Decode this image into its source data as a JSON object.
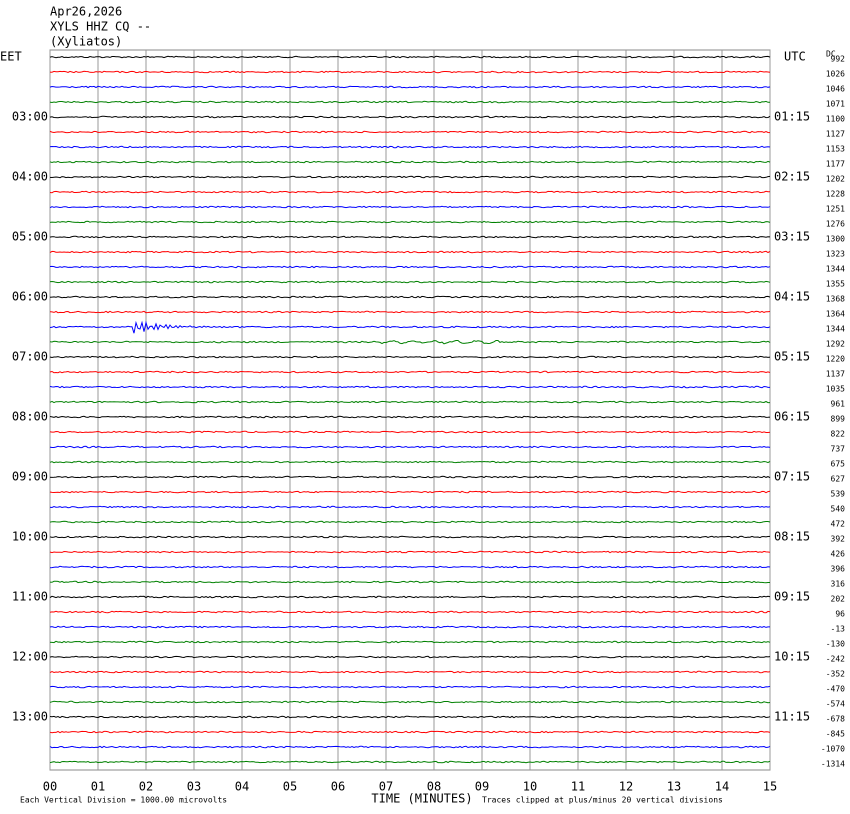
{
  "header": {
    "date": "Apr26,2026",
    "station": "XYLS HHZ CQ --",
    "location": "(Xyliatos)"
  },
  "left_zone": "EET",
  "right_zone": "UTC",
  "dc_title": "DC",
  "left_times": [
    "03:00",
    "04:00",
    "05:00",
    "06:00",
    "07:00",
    "08:00",
    "09:00",
    "10:00",
    "11:00",
    "12:00",
    "13:00"
  ],
  "right_times": [
    "01:15",
    "02:15",
    "03:15",
    "04:15",
    "05:15",
    "06:15",
    "07:15",
    "08:15",
    "09:15",
    "10:15",
    "11:15"
  ],
  "dc_offsets": [
    992,
    1026,
    1046,
    1071,
    1100,
    1127,
    1153,
    1177,
    1202,
    1228,
    1251,
    1276,
    1300,
    1323,
    1344,
    1355,
    1368,
    1364,
    1344,
    1292,
    1220,
    1137,
    1035,
    961,
    899,
    822,
    737,
    675,
    627,
    539,
    540,
    472,
    392,
    426,
    396,
    316,
    202,
    96,
    -13,
    -130,
    -242,
    -352,
    -470,
    -574,
    -678,
    -845,
    -1070,
    -1314
  ],
  "x_ticks": [
    "00",
    "01",
    "02",
    "03",
    "04",
    "05",
    "06",
    "07",
    "08",
    "09",
    "10",
    "11",
    "12",
    "13",
    "14",
    "15"
  ],
  "x_title": "TIME (MINUTES)",
  "footer_left": "Each Vertical Division = 1000.00 microvolts",
  "footer_right": "Traces clipped at plus/minus 20 vertical divisions",
  "trace_colors": [
    "#000000",
    "#ff0000",
    "#0000ff",
    "#008000"
  ]
}
